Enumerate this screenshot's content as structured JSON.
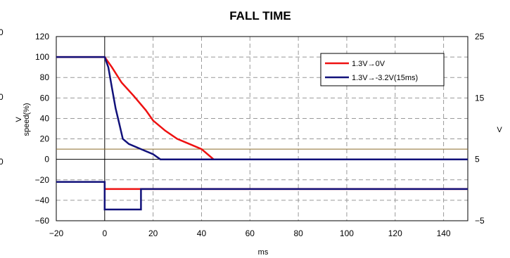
{
  "chart_data": {
    "type": "line",
    "title": "FALL TIME",
    "xlabel": "ms",
    "ylabel_main": "V",
    "ylabel_sub": "speed(%)",
    "y2label": "V",
    "xlim": [
      -20,
      150
    ],
    "ylim": [
      -60,
      120
    ],
    "y2lim": [
      -5,
      25
    ],
    "xticks": [
      -20,
      0,
      20,
      40,
      60,
      80,
      100,
      120,
      140
    ],
    "yticks": [
      -60,
      -40,
      -20,
      0,
      20,
      40,
      60,
      80,
      100,
      120
    ],
    "y2ticks": [
      -5,
      5,
      15,
      25
    ],
    "grid": true,
    "legend_position": "top-right",
    "reference_line_y": 10,
    "series": [
      {
        "name": "1.3V→0V",
        "color": "#ee1111",
        "axis": "left",
        "x": [
          -20,
          0,
          3,
          7,
          12,
          17,
          20,
          25,
          30,
          35,
          40,
          45,
          150
        ],
        "y": [
          100,
          100,
          90,
          75,
          62,
          48,
          38,
          28,
          20,
          15,
          10,
          0,
          0
        ]
      },
      {
        "name": "1.3V→-3.2V(15ms)",
        "color": "#11117a",
        "axis": "left",
        "x": [
          -20,
          0,
          1.5,
          3,
          4.5,
          6,
          7.5,
          10,
          15,
          20,
          23,
          150
        ],
        "y": [
          100,
          100,
          90,
          70,
          50,
          35,
          20,
          15,
          10,
          5,
          0,
          0
        ]
      },
      {
        "name": "1.3V→0V",
        "color": "#ee1111",
        "axis": "left",
        "x": [
          -20,
          0,
          0,
          150
        ],
        "y": [
          -22,
          -22,
          -29,
          -29
        ]
      },
      {
        "name": "1.3V→-3.2V(15ms)",
        "color": "#11117a",
        "axis": "left",
        "x": [
          -20,
          0,
          0,
          15,
          15,
          150
        ],
        "y": [
          -22,
          -22,
          -49,
          -49,
          -29,
          -29
        ]
      }
    ]
  },
  "left_cutoff_labels": [
    "0",
    "0",
    "0"
  ]
}
